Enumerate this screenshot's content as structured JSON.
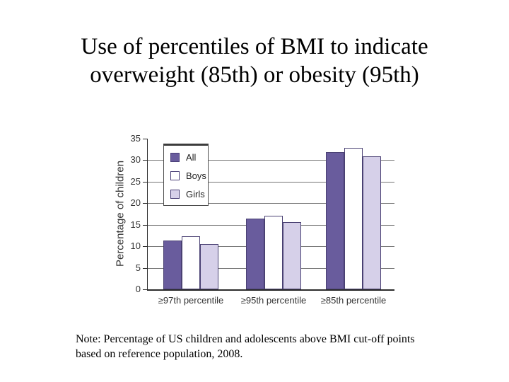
{
  "slide": {
    "title_lines": [
      "Use of percentiles of BMI to indicate",
      "overweight (85th) or obesity (95th)"
    ],
    "note_lines": [
      "Note: Percentage of US children and adolescents above BMI cut-off points",
      "based on reference population, 2008."
    ]
  },
  "chart_data": {
    "type": "bar",
    "title": "",
    "categories": [
      "≥97th percentile",
      "≥95th percentile",
      "≥85th percentile"
    ],
    "series": [
      {
        "name": "All",
        "color": "#695c9d",
        "values": [
          11.4,
          16.4,
          31.9
        ]
      },
      {
        "name": "Boys",
        "color": "#ffffff",
        "values": [
          12.4,
          17.1,
          32.8
        ]
      },
      {
        "name": "Girls",
        "color": "#d6d0e9",
        "values": [
          10.5,
          15.6,
          30.9
        ]
      }
    ],
    "xlabel": "",
    "ylabel": "Percentage of children",
    "ylim": [
      0,
      35
    ],
    "ytick_step": 5,
    "grid": true,
    "legend_position": "top-left",
    "bar_border_color": "#4a4173",
    "gridline_color": "#767676",
    "axis_color": "#2b2b2b"
  }
}
